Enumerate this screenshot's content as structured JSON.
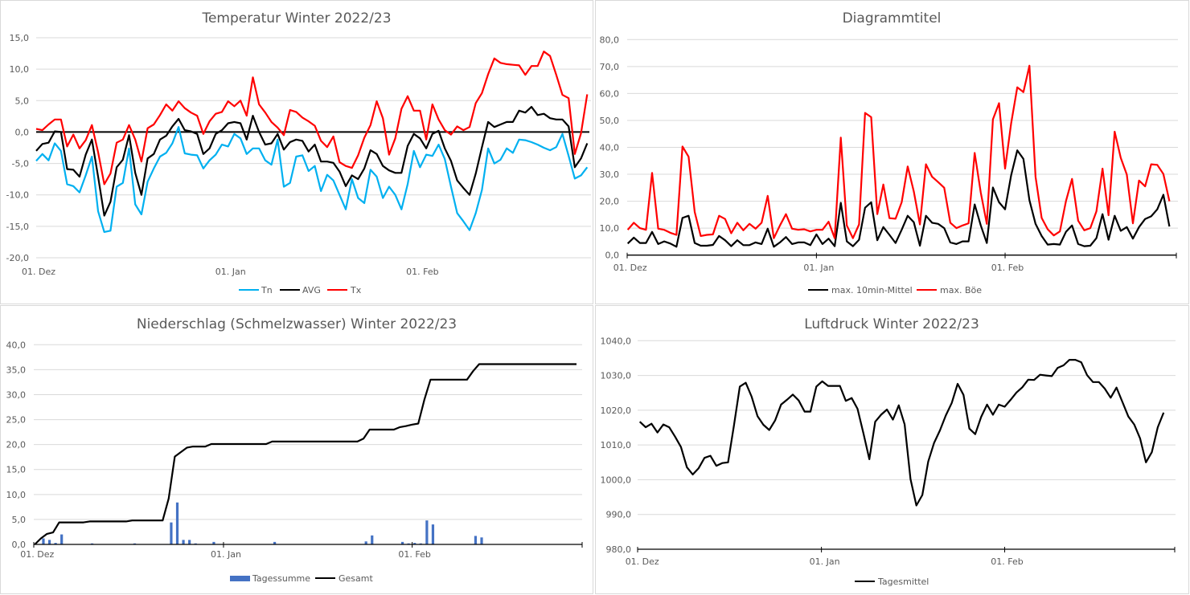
{
  "dates": {
    "start": "2022-12-01",
    "end": "2023-02-28",
    "step": "1 day"
  },
  "colors": {
    "tn": "#00B0F0",
    "avg": "#000000",
    "tx": "#FF0000",
    "wind_mean": "#000000",
    "gust": "#FF0000",
    "bars": "#4472C4",
    "total": "#000000",
    "pressure": "#000000"
  },
  "chart_data": [
    {
      "type": "line",
      "title": "Temperatur Winter 2022/23",
      "ylim": [
        -20,
        15
      ],
      "y_ticks": [
        "15,0",
        "10,0",
        "5,0",
        "0,0",
        "-5,0",
        "-10,0",
        "-15,0",
        "-20,0"
      ],
      "y_tick_values": [
        15,
        10,
        5,
        0,
        -5,
        -10,
        -15,
        -20
      ],
      "x_ticks": [
        "01. Dez",
        "01. Jan",
        "01. Feb"
      ],
      "grid": true,
      "legend": "bottom",
      "series": [
        {
          "name": "Tn",
          "color": "#00B0F0",
          "values": [
            -4.6,
            -3.5,
            -4.5,
            -1.8,
            -3.0,
            -8.3,
            -8.6,
            -9.6,
            -6.9,
            -3.9,
            -12.6,
            -15.9,
            -15.7,
            -8.7,
            -8.1,
            -2.6,
            -11.5,
            -13.1,
            -7.9,
            -5.8,
            -3.9,
            -3.3,
            -1.8,
            0.8,
            -3.4,
            -3.6,
            -3.7,
            -5.8,
            -4.5,
            -3.6,
            -2.0,
            -2.3,
            -0.3,
            -1.0,
            -3.5,
            -2.6,
            -2.6,
            -4.5,
            -5.2,
            -1.2,
            -8.7,
            -8.1,
            -3.9,
            -3.7,
            -6.2,
            -5.4,
            -9.4,
            -6.8,
            -7.7,
            -10.0,
            -12.3,
            -7.5,
            -10.5,
            -11.3,
            -6.0,
            -7.1,
            -10.5,
            -8.7,
            -10.0,
            -12.3,
            -8.3,
            -3.0,
            -5.6,
            -3.6,
            -3.8,
            -2.0,
            -4.3,
            -8.7,
            -12.9,
            -14.2,
            -15.6,
            -12.9,
            -9.2,
            -2.6,
            -5.0,
            -4.4,
            -2.6,
            -3.3,
            -1.2,
            -1.3,
            -1.6,
            -2.0,
            -2.5,
            -2.9,
            -2.4,
            -0.3,
            -3.8,
            -7.4,
            -6.9,
            -5.6
          ]
        },
        {
          "name": "AVG",
          "color": "#000000",
          "values": [
            -3.0,
            -1.9,
            -1.7,
            0.1,
            0.0,
            -5.9,
            -6.0,
            -7.1,
            -3.6,
            -1.2,
            -7.1,
            -13.3,
            -11.1,
            -5.6,
            -4.4,
            -0.5,
            -6.5,
            -10.0,
            -4.2,
            -3.5,
            -1.2,
            -0.6,
            0.9,
            2.1,
            0.3,
            0.1,
            -0.3,
            -3.5,
            -2.6,
            -0.3,
            0.3,
            1.4,
            1.6,
            1.4,
            -1.2,
            2.6,
            0.0,
            -2.0,
            -1.8,
            -0.3,
            -2.8,
            -1.6,
            -1.2,
            -1.4,
            -3.1,
            -2.0,
            -4.7,
            -4.7,
            -4.9,
            -6.3,
            -8.6,
            -6.9,
            -7.5,
            -5.8,
            -2.9,
            -3.5,
            -5.4,
            -6.1,
            -6.5,
            -6.5,
            -2.2,
            -0.3,
            -1.0,
            -2.6,
            -0.3,
            0.2,
            -2.6,
            -4.6,
            -7.7,
            -8.9,
            -10.0,
            -6.6,
            -2.4,
            1.6,
            0.8,
            1.2,
            1.6,
            1.6,
            3.4,
            3.1,
            4.0,
            2.7,
            2.9,
            2.2,
            2.0,
            2.0,
            0.9,
            -5.6,
            -4.2,
            -1.8
          ]
        },
        {
          "name": "Tx",
          "color": "#FF0000",
          "values": [
            0.5,
            0.3,
            1.2,
            2.0,
            2.0,
            -2.3,
            -0.4,
            -2.6,
            -1.3,
            1.1,
            -3.2,
            -8.3,
            -6.6,
            -1.7,
            -1.2,
            1.1,
            -1.2,
            -4.7,
            0.6,
            1.2,
            2.7,
            4.4,
            3.4,
            4.9,
            3.8,
            3.1,
            2.6,
            -0.3,
            1.7,
            2.9,
            3.2,
            4.9,
            4.1,
            5.0,
            2.6,
            8.7,
            4.4,
            3.1,
            1.6,
            0.7,
            -0.5,
            3.5,
            3.2,
            2.3,
            1.7,
            1.0,
            -1.4,
            -2.4,
            -0.7,
            -4.8,
            -5.4,
            -5.7,
            -3.7,
            -0.9,
            1.1,
            4.9,
            2.2,
            -3.6,
            -1.0,
            3.7,
            5.7,
            3.4,
            3.4,
            -1.2,
            4.4,
            2.0,
            0.3,
            -0.4,
            0.9,
            0.3,
            0.8,
            4.6,
            6.2,
            9.2,
            11.7,
            11.0,
            10.8,
            10.7,
            10.6,
            9.1,
            10.5,
            10.5,
            12.8,
            12.1,
            9.1,
            5.9,
            5.4,
            -3.5,
            -0.2,
            6.0
          ]
        }
      ]
    },
    {
      "type": "line",
      "title": "Diagrammtitel",
      "ylim": [
        0,
        80
      ],
      "y_ticks": [
        "80,0",
        "70,0",
        "60,0",
        "50,0",
        "40,0",
        "30,0",
        "20,0",
        "10,0",
        "0,0"
      ],
      "y_tick_values": [
        80,
        70,
        60,
        50,
        40,
        30,
        20,
        10,
        0
      ],
      "x_ticks": [
        "01. Dez",
        "01. Jan",
        "01. Feb"
      ],
      "grid": true,
      "legend": "bottom",
      "series": [
        {
          "name": "max. 10min-Mittel",
          "color": "#000000",
          "values": [
            4.3,
            6.5,
            4.5,
            4.5,
            8.6,
            4.1,
            5.1,
            4.3,
            3.1,
            13.8,
            14.6,
            4.5,
            3.5,
            3.5,
            3.8,
            7.1,
            5.5,
            3.3,
            5.5,
            3.7,
            3.7,
            4.7,
            4.1,
            9.8,
            3.1,
            4.7,
            6.7,
            4.1,
            4.7,
            4.7,
            3.7,
            7.7,
            4.1,
            6.1,
            3.3,
            19.4,
            5.1,
            3.3,
            5.7,
            17.6,
            19.6,
            5.5,
            10.4,
            7.5,
            4.5,
            9.4,
            14.6,
            12.2,
            3.5,
            14.6,
            12.0,
            11.6,
            10.0,
            4.7,
            4.1,
            5.1,
            5.1,
            18.8,
            11.0,
            4.5,
            25.1,
            19.6,
            17.0,
            29.7,
            38.9,
            35.7,
            20.4,
            11.6,
            7.1,
            3.9,
            4.1,
            3.9,
            8.6,
            11.0,
            4.1,
            3.3,
            3.5,
            6.3,
            15.2,
            5.7,
            14.6,
            9.0,
            10.4,
            6.1,
            10.4,
            13.4,
            14.4,
            17.0,
            22.4,
            10.6
          ]
        },
        {
          "name": "max. Böe",
          "color": "#FF0000",
          "values": [
            9.4,
            12.0,
            10.0,
            9.4,
            30.5,
            9.8,
            9.4,
            8.3,
            7.5,
            40.3,
            36.5,
            16.0,
            7.1,
            7.5,
            7.7,
            14.6,
            13.4,
            8.1,
            12.0,
            9.2,
            11.6,
            9.8,
            12.0,
            22.0,
            6.3,
            11.0,
            15.2,
            9.8,
            9.4,
            9.6,
            8.8,
            9.4,
            9.4,
            12.4,
            6.3,
            43.6,
            11.0,
            6.3,
            11.4,
            52.8,
            51.2,
            15.2,
            26.2,
            13.7,
            13.5,
            19.6,
            32.9,
            23.6,
            11.4,
            33.7,
            29.1,
            27.1,
            25.0,
            12.0,
            10.0,
            11.0,
            11.8,
            37.9,
            23.2,
            11.6,
            50.4,
            56.4,
            32.1,
            49.0,
            62.3,
            60.5,
            70.3,
            29.1,
            13.8,
            9.6,
            7.3,
            8.8,
            20.0,
            28.3,
            12.8,
            9.2,
            10.0,
            16.2,
            32.1,
            14.8,
            45.8,
            36.1,
            29.9,
            11.8,
            27.7,
            25.5,
            33.7,
            33.5,
            30.1,
            20.0
          ]
        }
      ]
    },
    {
      "type": "bar+line",
      "title": "Niederschlag (Schmelzwasser) Winter 2022/23",
      "ylim": [
        0,
        40
      ],
      "y_ticks": [
        "40,0",
        "35,0",
        "30,0",
        "25,0",
        "20,0",
        "15,0",
        "10,0",
        "5,0",
        "0,0"
      ],
      "y_tick_values": [
        40,
        35,
        30,
        25,
        20,
        15,
        10,
        5,
        0
      ],
      "x_ticks": [
        "01. Dez",
        "01. Jan",
        "01. Feb"
      ],
      "grid": true,
      "legend": "bottom",
      "series": [
        {
          "name": "Tagessumme",
          "kind": "bar",
          "color": "#4472C4",
          "values": [
            0,
            1.2,
            0.9,
            0.3,
            2.0,
            0,
            0,
            0,
            0,
            0.2,
            0,
            0,
            0,
            0,
            0,
            0,
            0.2,
            0,
            0,
            0,
            0,
            0,
            4.4,
            8.4,
            0.9,
            0.9,
            0.2,
            0,
            0,
            0.5,
            0,
            0,
            0,
            0,
            0,
            0,
            0,
            0,
            0,
            0.5,
            0,
            0,
            0,
            0,
            0,
            0,
            0,
            0,
            0,
            0,
            0,
            0,
            0,
            0,
            0.6,
            1.8,
            0,
            0,
            0,
            0,
            0.5,
            0.2,
            0.3,
            0.2,
            4.8,
            4.0,
            0,
            0,
            0,
            0,
            0,
            0,
            1.7,
            1.4,
            0,
            0,
            0,
            0,
            0,
            0,
            0,
            0,
            0,
            0,
            0,
            0,
            0,
            0,
            0,
            0
          ]
        },
        {
          "name": "Gesamt",
          "kind": "line",
          "color": "#000000",
          "values": [
            0,
            1.2,
            2.1,
            2.4,
            4.4,
            4.4,
            4.4,
            4.4,
            4.4,
            4.6,
            4.6,
            4.6,
            4.6,
            4.6,
            4.6,
            4.6,
            4.8,
            4.8,
            4.8,
            4.8,
            4.8,
            4.8,
            9.2,
            17.6,
            18.5,
            19.4,
            19.6,
            19.6,
            19.6,
            20.1,
            20.1,
            20.1,
            20.1,
            20.1,
            20.1,
            20.1,
            20.1,
            20.1,
            20.1,
            20.6,
            20.6,
            20.6,
            20.6,
            20.6,
            20.6,
            20.6,
            20.6,
            20.6,
            20.6,
            20.6,
            20.6,
            20.6,
            20.6,
            20.6,
            21.2,
            23.0,
            23.0,
            23.0,
            23.0,
            23.0,
            23.5,
            23.7,
            24.0,
            24.2,
            29.0,
            33.0,
            33.0,
            33.0,
            33.0,
            33.0,
            33.0,
            33.0,
            34.7,
            36.1,
            36.1,
            36.1,
            36.1,
            36.1,
            36.1,
            36.1,
            36.1,
            36.1,
            36.1,
            36.1,
            36.1,
            36.1,
            36.1,
            36.1,
            36.1,
            36.1
          ]
        }
      ]
    },
    {
      "type": "line",
      "title": "Luftdruck Winter 2022/23",
      "ylim": [
        980,
        1040
      ],
      "y_ticks": [
        "1040,0",
        "1030,0",
        "1020,0",
        "1010,0",
        "1000,0",
        "990,0",
        "980,0"
      ],
      "y_tick_values": [
        1040,
        1030,
        1020,
        1010,
        1000,
        990,
        980
      ],
      "x_ticks": [
        "01. Dez",
        "01. Jan",
        "01. Feb"
      ],
      "grid": true,
      "legend": "bottom",
      "series": [
        {
          "name": "Tagesmittel",
          "color": "#000000",
          "values": [
            1016.7,
            1015.1,
            1016.1,
            1013.6,
            1015.9,
            1015.1,
            1012.4,
            1009.4,
            1003.6,
            1001.5,
            1003.3,
            1006.3,
            1006.9,
            1004.0,
            1004.8,
            1005.0,
            1015.6,
            1026.8,
            1027.9,
            1023.9,
            1018.3,
            1015.8,
            1014.3,
            1017.1,
            1021.6,
            1023.0,
            1024.5,
            1022.8,
            1019.6,
            1019.6,
            1026.8,
            1028.3,
            1027.0,
            1027.0,
            1027.0,
            1022.7,
            1023.5,
            1020.4,
            1013.3,
            1005.9,
            1016.7,
            1018.7,
            1020.2,
            1017.3,
            1021.4,
            1015.9,
            1000.2,
            992.6,
            995.6,
            1005.2,
            1010.6,
            1014.2,
            1018.5,
            1022.1,
            1027.6,
            1024.4,
            1014.7,
            1013.1,
            1018.1,
            1021.6,
            1018.7,
            1021.6,
            1021.0,
            1023.0,
            1025.1,
            1026.6,
            1028.8,
            1028.7,
            1030.2,
            1030.0,
            1029.8,
            1032.2,
            1032.9,
            1034.5,
            1034.5,
            1033.8,
            1030.1,
            1028.1,
            1028.1,
            1026.2,
            1023.6,
            1026.5,
            1022.4,
            1018.2,
            1015.9,
            1011.9,
            1005.0,
            1007.9,
            1015.1,
            1019.3
          ]
        }
      ]
    }
  ]
}
